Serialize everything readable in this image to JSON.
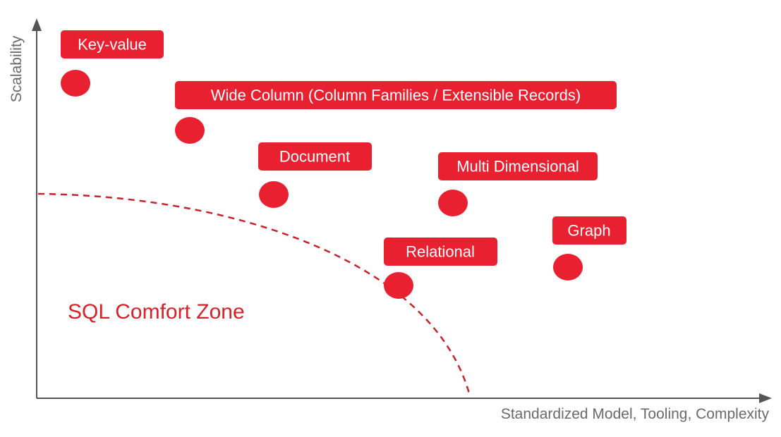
{
  "colors": {
    "accent": "#e8202f",
    "axis": "#555555",
    "axis_text": "#6a6a6a",
    "zone_text": "#d92027",
    "zone_curve": "#c8232c"
  },
  "axes": {
    "y_label": "Scalability",
    "x_label": "Standardized Model, Tooling, Complexity"
  },
  "zone": {
    "label": "SQL Comfort Zone"
  },
  "items": [
    {
      "id": "key-value",
      "label": "Key-value"
    },
    {
      "id": "wide-column",
      "label": "Wide Column (Column Families / Extensible Records)"
    },
    {
      "id": "document",
      "label": "Document"
    },
    {
      "id": "multi-dimensional",
      "label": "Multi Dimensional"
    },
    {
      "id": "graph",
      "label": "Graph"
    },
    {
      "id": "relational",
      "label": "Relational"
    }
  ]
}
